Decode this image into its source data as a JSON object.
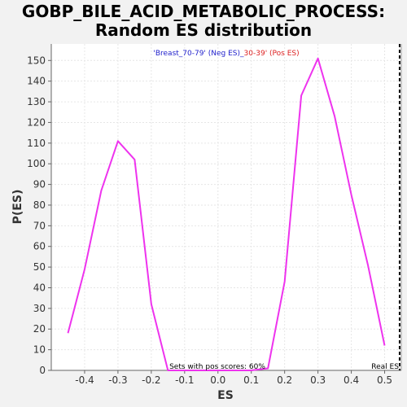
{
  "chart_data": {
    "type": "line",
    "title_line1": "GOBP_BILE_ACID_METABOLIC_PROCESS:",
    "title_line2": "Random ES distribution",
    "subtitle_neg": "'Breast_70-79' (Neg ES)",
    "subtitle_sep": "_",
    "subtitle_pos": "30-39' (Pos ES)",
    "xlabel": "ES",
    "ylabel": "P(ES)",
    "xlim": [
      -0.5,
      0.55
    ],
    "ylim": [
      0,
      158
    ],
    "xticks": [
      -0.4,
      -0.3,
      -0.2,
      -0.1,
      0.0,
      0.1,
      0.2,
      0.3,
      0.4,
      0.5
    ],
    "xtick_labels": [
      "-0.4",
      "-0.3",
      "-0.2",
      "-0.1",
      "0.0",
      "0.1",
      "0.2",
      "0.3",
      "0.4",
      "0.5"
    ],
    "yticks": [
      0,
      10,
      20,
      30,
      40,
      50,
      60,
      70,
      80,
      90,
      100,
      110,
      120,
      130,
      140,
      150
    ],
    "ytick_labels": [
      "0",
      "10",
      "20",
      "30",
      "40",
      "50",
      "60",
      "70",
      "80",
      "90",
      "100",
      "110",
      "120",
      "130",
      "140",
      "150"
    ],
    "series": [
      {
        "color": "#ee33ee",
        "x": [
          -0.45,
          -0.4,
          -0.35,
          -0.3,
          -0.25,
          -0.2,
          -0.15,
          -0.1,
          -0.05,
          0.0,
          0.05,
          0.1,
          0.15,
          0.2,
          0.25,
          0.3,
          0.35,
          0.4,
          0.45,
          0.5
        ],
        "y": [
          18,
          49,
          87,
          111,
          102,
          32,
          0,
          0,
          0,
          0,
          0,
          0,
          1,
          43,
          133,
          151,
          123,
          85,
          51,
          12
        ]
      }
    ],
    "real_es": 0.545,
    "real_es_label": "Real ES",
    "annotation": "Sets with pos scores: 60%",
    "grid": true,
    "colors": {
      "neg": "#2222cc",
      "pos": "#dd2222",
      "line": "#ee33ee"
    }
  }
}
